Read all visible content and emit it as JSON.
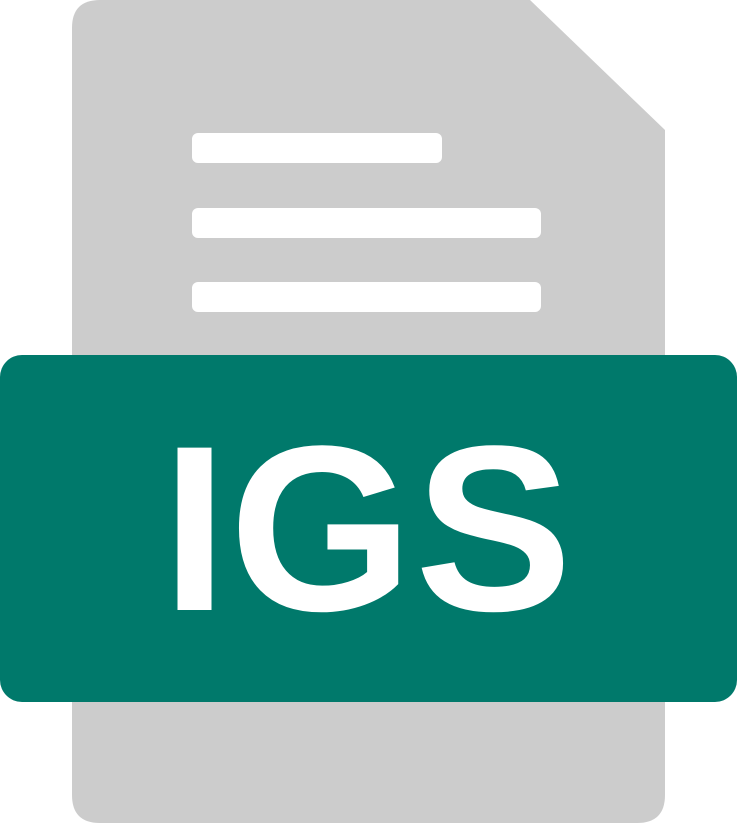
{
  "file_icon": {
    "extension_label": "IGS",
    "icon_name": "document-file-icon",
    "colors": {
      "page": "#cccccc",
      "page_lines": "#ffffff",
      "banner": "#00796b",
      "label_text": "#ffffff",
      "background": "#ffffff"
    }
  }
}
